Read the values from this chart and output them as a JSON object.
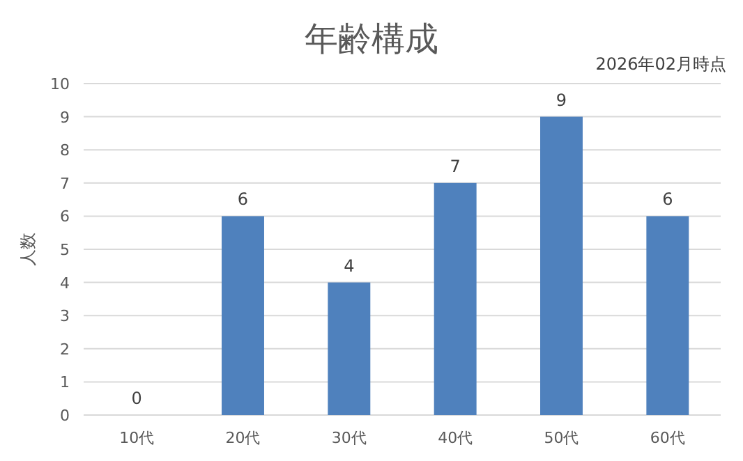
{
  "chart_data": {
    "type": "bar",
    "title": "年齢構成",
    "subtitle": "2026年02月時点",
    "ylabel": "人数",
    "categories": [
      "10代",
      "20代",
      "30代",
      "40代",
      "50代",
      "60代"
    ],
    "values": [
      0,
      6,
      4,
      7,
      9,
      6
    ],
    "color": "#4f81bd",
    "ylim": [
      0,
      10
    ],
    "yticks": [
      0,
      1,
      2,
      3,
      4,
      5,
      6,
      7,
      8,
      9,
      10
    ],
    "grid": "y",
    "data_labels": true
  }
}
